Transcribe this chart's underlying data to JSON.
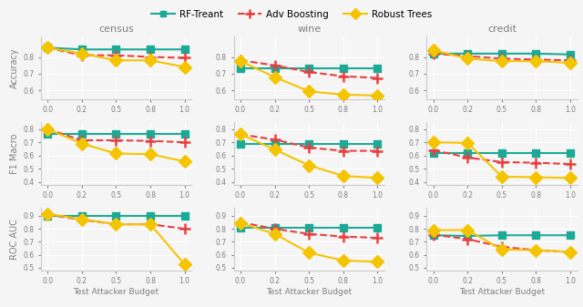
{
  "x": [
    0.0,
    0.25,
    0.5,
    0.75,
    1.0
  ],
  "datasets": {
    "census": {
      "Accuracy": {
        "RF-Treant": [
          0.855,
          0.845,
          0.845,
          0.845,
          0.845
        ],
        "Adv Boosting": [
          0.855,
          0.81,
          0.81,
          0.8,
          0.795
        ],
        "Robust Trees": [
          0.855,
          0.82,
          0.78,
          0.78,
          0.74
        ]
      },
      "F1 Macro": {
        "RF-Treant": [
          0.765,
          0.765,
          0.765,
          0.765,
          0.765
        ],
        "Adv Boosting": [
          0.8,
          0.715,
          0.715,
          0.71,
          0.7
        ],
        "Robust Trees": [
          0.8,
          0.69,
          0.615,
          0.61,
          0.555
        ]
      },
      "ROC AUC": {
        "RF-Treant": [
          0.9,
          0.9,
          0.9,
          0.9,
          0.9
        ],
        "Adv Boosting": [
          0.91,
          0.87,
          0.835,
          0.835,
          0.8
        ],
        "Robust Trees": [
          0.915,
          0.875,
          0.835,
          0.835,
          0.525
        ]
      }
    },
    "wine": {
      "Accuracy": {
        "RF-Treant": [
          0.73,
          0.73,
          0.73,
          0.73,
          0.73
        ],
        "Adv Boosting": [
          0.78,
          0.75,
          0.71,
          0.685,
          0.675
        ],
        "Robust Trees": [
          0.775,
          0.68,
          0.595,
          0.575,
          0.57
        ]
      },
      "F1 Macro": {
        "RF-Treant": [
          0.69,
          0.69,
          0.69,
          0.69,
          0.69
        ],
        "Adv Boosting": [
          0.76,
          0.72,
          0.66,
          0.635,
          0.635
        ],
        "Robust Trees": [
          0.76,
          0.645,
          0.525,
          0.445,
          0.43
        ]
      },
      "ROC AUC": {
        "RF-Treant": [
          0.805,
          0.805,
          0.805,
          0.805,
          0.805
        ],
        "Adv Boosting": [
          0.85,
          0.8,
          0.76,
          0.74,
          0.73
        ],
        "Robust Trees": [
          0.845,
          0.76,
          0.615,
          0.555,
          0.545
        ]
      }
    },
    "credit": {
      "Accuracy": {
        "RF-Treant": [
          0.82,
          0.82,
          0.82,
          0.82,
          0.815
        ],
        "Adv Boosting": [
          0.82,
          0.805,
          0.79,
          0.785,
          0.78
        ],
        "Robust Trees": [
          0.84,
          0.79,
          0.775,
          0.775,
          0.765
        ]
      },
      "F1 Macro": {
        "RF-Treant": [
          0.62,
          0.62,
          0.62,
          0.62,
          0.62
        ],
        "Adv Boosting": [
          0.64,
          0.585,
          0.55,
          0.545,
          0.535
        ],
        "Robust Trees": [
          0.7,
          0.695,
          0.44,
          0.435,
          0.43
        ]
      },
      "ROC AUC": {
        "RF-Treant": [
          0.75,
          0.745,
          0.75,
          0.75,
          0.75
        ],
        "Adv Boosting": [
          0.755,
          0.72,
          0.66,
          0.635,
          0.62
        ],
        "Robust Trees": [
          0.79,
          0.79,
          0.64,
          0.635,
          0.62
        ]
      }
    }
  },
  "colors": {
    "RF-Treant": "#1aaa96",
    "Adv Boosting": "#e84040",
    "Robust Trees": "#f5c400"
  },
  "markers": {
    "RF-Treant": "s",
    "Adv Boosting": "+",
    "Robust Trees": "D"
  },
  "linestyles": {
    "RF-Treant": "-",
    "Adv Boosting": "--",
    "Robust Trees": "-"
  },
  "ylims": {
    "Accuracy": [
      0.55,
      0.92
    ],
    "F1 Macro": [
      0.38,
      0.85
    ],
    "ROC AUC": [
      0.48,
      0.96
    ]
  },
  "yticks": {
    "Accuracy": [
      0.6,
      0.7,
      0.8
    ],
    "F1 Macro": [
      0.4,
      0.5,
      0.6,
      0.7,
      0.8
    ],
    "ROC AUC": [
      0.5,
      0.6,
      0.7,
      0.8,
      0.9
    ]
  },
  "col_titles": [
    "census",
    "wine",
    "credit"
  ],
  "row_titles": [
    "Accuracy",
    "F1 Macro",
    "ROC AUC"
  ],
  "xlabel": "Test Attacker Budget",
  "background_color": "#f5f5f5",
  "grid_color": "#ffffff",
  "linewidth": 1.5,
  "markersize_sq": 6,
  "markersize_dia": 7,
  "markersize_plus": 8
}
